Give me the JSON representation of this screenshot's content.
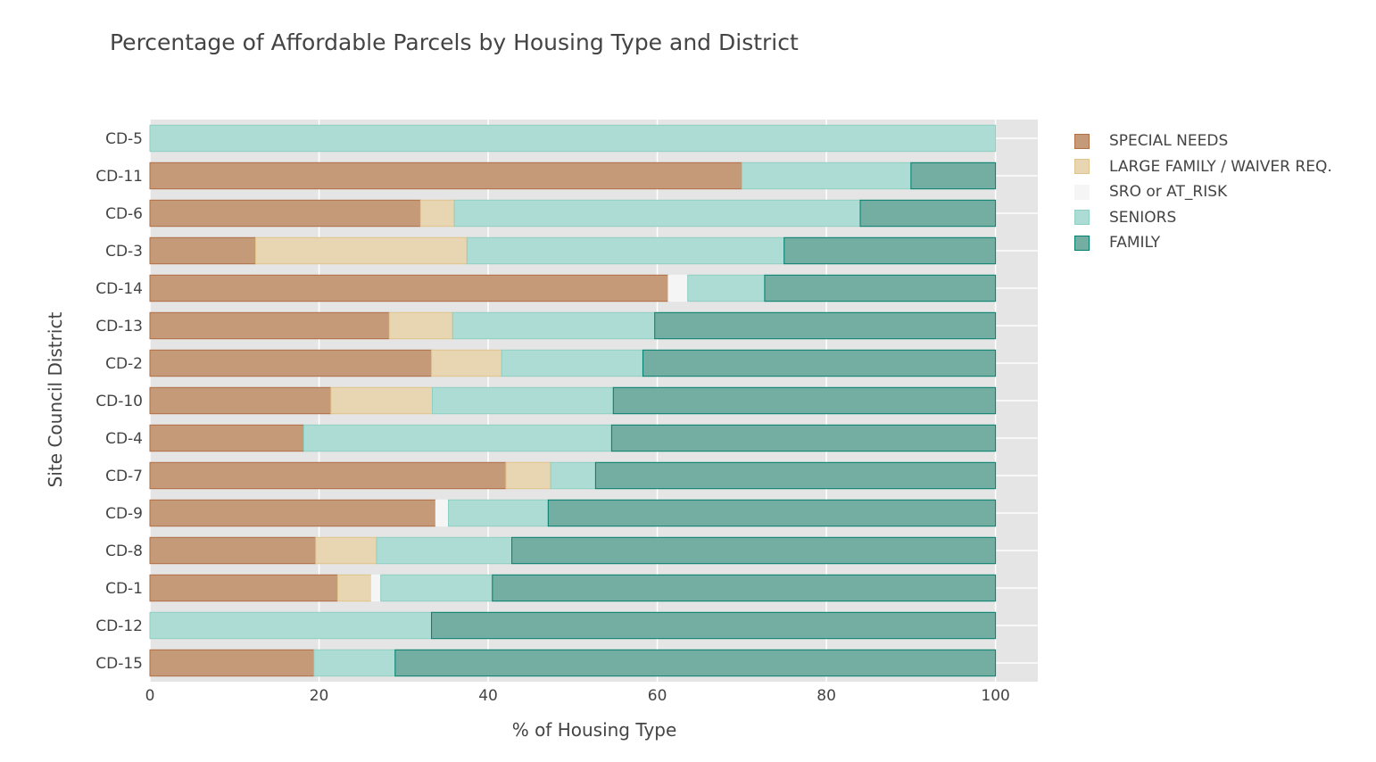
{
  "chart_data": {
    "type": "bar",
    "orientation": "horizontal",
    "barmode": "stack",
    "title": "Percentage of Affordable Parcels by Housing Type and District",
    "xlabel": "% of Housing Type",
    "ylabel": "Site Council District",
    "xlim": [
      0,
      105
    ],
    "xticks": [
      0,
      20,
      40,
      60,
      80,
      100
    ],
    "xtick_labels": [
      "0",
      "20",
      "40",
      "60",
      "80",
      "100"
    ],
    "grid": true,
    "legend_position": "right",
    "categories": [
      "CD-5",
      "CD-11",
      "CD-6",
      "CD-3",
      "CD-14",
      "CD-13",
      "CD-2",
      "CD-10",
      "CD-4",
      "CD-7",
      "CD-9",
      "CD-8",
      "CD-1",
      "CD-12",
      "CD-15"
    ],
    "series": [
      {
        "name": "SPECIAL NEEDS",
        "fill": "#c49a78",
        "line": "#b06f45",
        "values": [
          0,
          70,
          32,
          12.5,
          61.3,
          28.3,
          33.3,
          21.4,
          18.2,
          42.1,
          33.8,
          19.6,
          22.2,
          0,
          19.4
        ]
      },
      {
        "name": "LARGE FAMILY / WAIVER REQ.",
        "fill": "#e7d6b1",
        "line": "#dfc38c",
        "values": [
          0,
          0,
          4,
          25,
          0,
          7.5,
          8.3,
          12,
          0,
          5.3,
          0,
          7.2,
          4,
          0,
          0
        ]
      },
      {
        "name": "SRO or AT_RISK",
        "fill": "#f5f5f5",
        "line": "#f5f5f5",
        "values": [
          0,
          0,
          0,
          0,
          2.3,
          0,
          0,
          0,
          0,
          0,
          1.5,
          0,
          1.1,
          0,
          0
        ]
      },
      {
        "name": "SENIORS",
        "fill": "#acdcd4",
        "line": "#8ecfc3",
        "values": [
          100,
          20,
          48,
          37.5,
          9.1,
          23.9,
          16.7,
          21.4,
          36.4,
          5.3,
          11.8,
          16,
          13.2,
          33.3,
          9.6
        ]
      },
      {
        "name": "FAMILY",
        "fill": "#74ada2",
        "line": "#017f6d",
        "values": [
          0,
          10,
          16,
          25,
          27.3,
          40.3,
          41.7,
          45.2,
          45.4,
          47.3,
          52.9,
          57.2,
          59.5,
          66.7,
          71
        ]
      }
    ]
  }
}
